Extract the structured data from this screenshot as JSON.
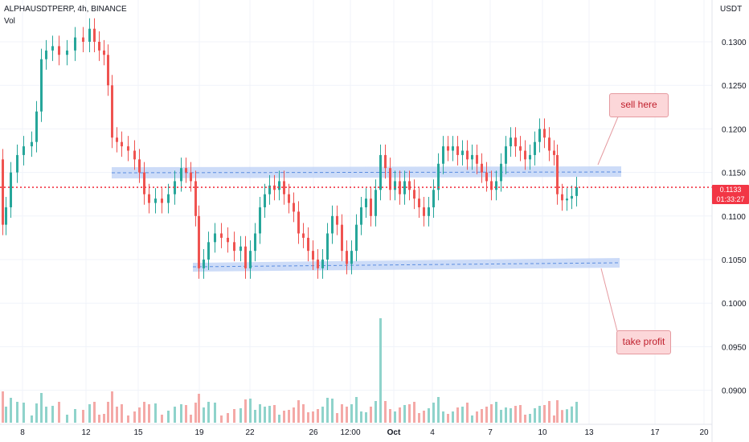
{
  "header": {
    "symbol_line": "ALPHAUSDTPERP, 4h, BINANCE",
    "volume_label": "Vol",
    "currency": "USDT"
  },
  "price_axis": {
    "ticks": [
      "0.1300",
      "0.1250",
      "0.1200",
      "0.1150",
      "0.1100",
      "0.1050",
      "0.1000",
      "0.0950",
      "0.0900"
    ]
  },
  "time_axis": {
    "ticks": [
      "8",
      "12",
      "15",
      "19",
      "22",
      "26",
      "12:00",
      "Oct",
      "4",
      "7",
      "10",
      "13",
      "17",
      "20"
    ]
  },
  "current": {
    "price": "0.1133",
    "countdown": "01:33:27",
    "color": "#f23645"
  },
  "annotations": {
    "sell": "sell here",
    "take_profit": "take profit"
  },
  "colors": {
    "up": "#26a69a",
    "down": "#ef5350",
    "zone": "#bcd0f5",
    "zone_line": "#5b8de0"
  }
}
